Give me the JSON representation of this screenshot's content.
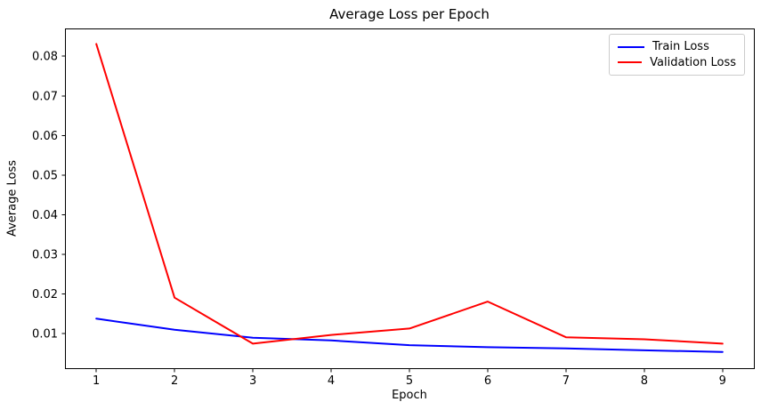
{
  "chart_data": {
    "type": "line",
    "title": "Average Loss per Epoch",
    "xlabel": "Epoch",
    "ylabel": "Average Loss",
    "x": [
      1,
      2,
      3,
      4,
      5,
      6,
      7,
      8,
      9
    ],
    "series": [
      {
        "name": "Train Loss",
        "color": "#0000ff",
        "values": [
          0.0138,
          0.011,
          0.009,
          0.0083,
          0.0071,
          0.0066,
          0.0063,
          0.0058,
          0.0054
        ]
      },
      {
        "name": "Validation Loss",
        "color": "#ff0000",
        "values": [
          0.0831,
          0.0191,
          0.0075,
          0.0097,
          0.0113,
          0.0181,
          0.0091,
          0.0086,
          0.0075
        ]
      }
    ],
    "xlim": [
      0.6,
      9.4
    ],
    "ylim": [
      0.0013,
      0.087
    ],
    "x_ticks": [
      1,
      2,
      3,
      4,
      5,
      6,
      7,
      8,
      9
    ],
    "x_tick_labels": [
      "1",
      "2",
      "3",
      "4",
      "5",
      "6",
      "7",
      "8",
      "9"
    ],
    "y_ticks": [
      0.01,
      0.02,
      0.03,
      0.04,
      0.05,
      0.06,
      0.07,
      0.08
    ],
    "y_tick_labels": [
      "0.01",
      "0.02",
      "0.03",
      "0.04",
      "0.05",
      "0.06",
      "0.07",
      "0.08"
    ],
    "grid": false,
    "legend_position": "upper right",
    "axis_color": "#000000",
    "background_color": "#ffffff"
  }
}
